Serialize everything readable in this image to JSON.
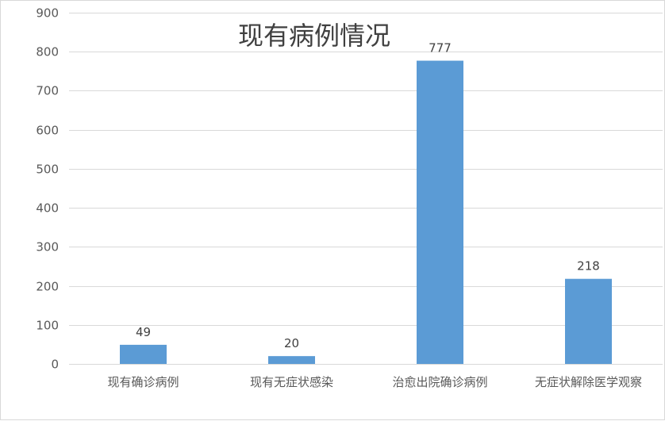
{
  "chart_data": {
    "type": "bar",
    "title": "现有病例情况",
    "categories": [
      "现有确诊病例",
      "现有无症状感染",
      "治愈出院确诊病例",
      "无症状解除医学观察"
    ],
    "values": [
      49,
      20,
      777,
      218
    ],
    "ylim": [
      0,
      900
    ],
    "yticks": [
      0,
      100,
      200,
      300,
      400,
      500,
      600,
      700,
      800,
      900
    ],
    "xlabel": "",
    "ylabel": "",
    "grid": true,
    "legend": "none",
    "bar_color": "#5b9bd5",
    "data_labels": true
  }
}
